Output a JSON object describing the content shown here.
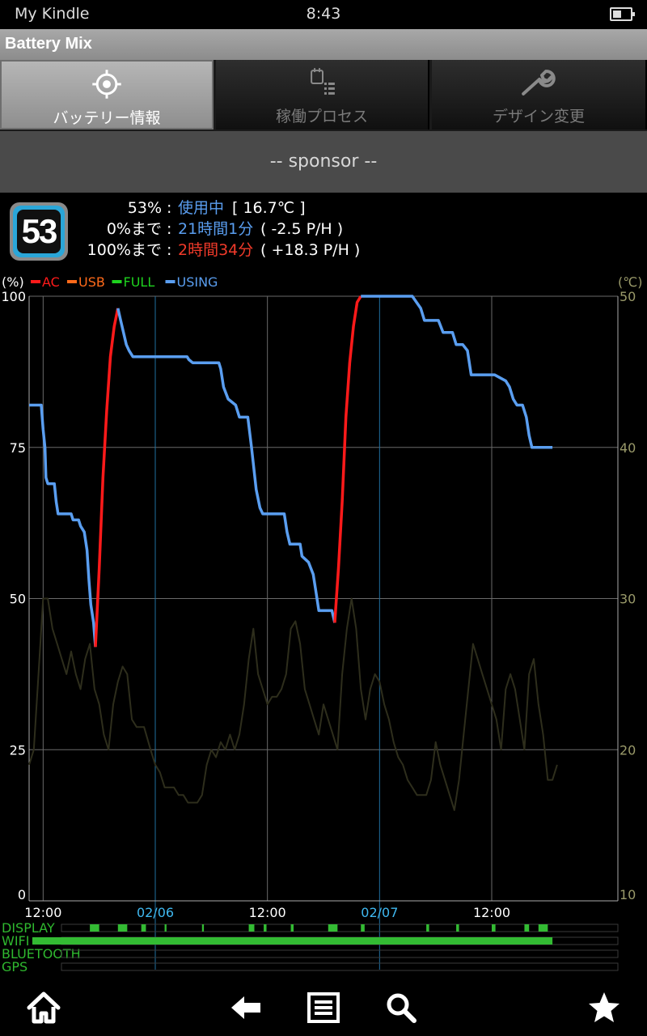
{
  "status_bar": {
    "carrier": "My Kindle",
    "time": "8:43"
  },
  "app_title": "Battery Mix",
  "tabs": [
    {
      "label": "バッテリー情報",
      "icon": "crosshair-icon",
      "active": true
    },
    {
      "label": "稼働プロセス",
      "icon": "process-list-icon",
      "active": false
    },
    {
      "label": "デザイン変更",
      "icon": "wrench-icon",
      "active": false
    }
  ],
  "sponsor_text": "-- sponsor --",
  "battery": {
    "level": "53",
    "level_label": "53%",
    "status_value": "使用中",
    "temperature": "[ 16.7℃ ]",
    "to_empty_label": "0%まで",
    "to_empty_time": "21時間1分",
    "to_empty_rate": "( -2.5 P/H )",
    "to_full_label": "100%まで",
    "to_full_time": "2時間34分",
    "to_full_rate": "( +18.3 P/H )",
    "separator": ":"
  },
  "colors": {
    "ac": "#ff1a1a",
    "usb": "#ff6a1a",
    "full": "#1ed21e",
    "using": "#5a9ef0",
    "temperature_line": "#2e2e1c",
    "date_grid": "#1f6fa0",
    "grid": "#6a6a6a",
    "state_bar": "#33bb33"
  },
  "chart_data": {
    "type": "line",
    "y_left_label": "(%)",
    "y_right_label": "(℃)",
    "ylim": [
      0,
      100
    ],
    "y2lim": [
      10,
      50
    ],
    "y_ticks": [
      0,
      25,
      50,
      75,
      100
    ],
    "y2_ticks": [
      10,
      20,
      30,
      40,
      50
    ],
    "x_tick_labels": [
      {
        "label": "12:00",
        "x": 12,
        "kind": "time"
      },
      {
        "label": "02/06",
        "x": 24,
        "kind": "date"
      },
      {
        "label": "12:00",
        "x": 36,
        "kind": "time"
      },
      {
        "label": "02/07",
        "x": 48,
        "kind": "date"
      },
      {
        "label": "12:00",
        "x": 60,
        "kind": "time"
      }
    ],
    "xlim": [
      10.5,
      73.5
    ],
    "legend": [
      {
        "name": "AC",
        "color": "#ff1a1a"
      },
      {
        "name": "USB",
        "color": "#ff6a1a"
      },
      {
        "name": "FULL",
        "color": "#1ed21e"
      },
      {
        "name": "USING",
        "color": "#5a9ef0"
      }
    ],
    "series": [
      {
        "name": "USING",
        "color": "#5a9ef0",
        "points": [
          [
            10.5,
            82
          ],
          [
            11.8,
            82
          ],
          [
            12.0,
            78
          ],
          [
            12.2,
            75
          ],
          [
            12.3,
            70
          ],
          [
            12.5,
            69
          ],
          [
            13.2,
            69
          ],
          [
            13.4,
            66
          ],
          [
            13.6,
            64
          ],
          [
            15.0,
            64
          ],
          [
            15.2,
            63
          ],
          [
            15.8,
            63
          ],
          [
            16.0,
            62
          ],
          [
            16.4,
            61
          ],
          [
            16.7,
            58
          ],
          [
            16.9,
            53
          ],
          [
            17.1,
            49
          ],
          [
            17.4,
            46
          ],
          [
            17.6,
            42
          ]
        ]
      },
      {
        "name": "AC",
        "color": "#ff1a1a",
        "points": [
          [
            17.6,
            42
          ],
          [
            18.0,
            55
          ],
          [
            18.4,
            70
          ],
          [
            18.8,
            81
          ],
          [
            19.2,
            90
          ],
          [
            19.6,
            95
          ],
          [
            20.0,
            98
          ]
        ]
      },
      {
        "name": "USING",
        "color": "#5a9ef0",
        "points": [
          [
            20.0,
            98
          ],
          [
            20.3,
            96
          ],
          [
            20.6,
            94
          ],
          [
            20.9,
            92
          ],
          [
            21.2,
            91
          ],
          [
            21.6,
            90
          ],
          [
            25.0,
            90
          ],
          [
            27.4,
            90
          ],
          [
            27.6,
            89.5
          ],
          [
            28.0,
            89
          ],
          [
            30.8,
            89
          ],
          [
            31.0,
            88
          ],
          [
            31.3,
            85
          ],
          [
            31.8,
            83
          ],
          [
            32.6,
            82
          ],
          [
            33.0,
            80
          ],
          [
            33.9,
            80
          ],
          [
            34.3,
            75
          ],
          [
            34.8,
            68
          ],
          [
            35.2,
            65
          ],
          [
            35.5,
            64
          ],
          [
            37.8,
            64
          ],
          [
            38.1,
            61
          ],
          [
            38.4,
            59
          ],
          [
            39.5,
            59
          ],
          [
            39.7,
            57
          ],
          [
            40.4,
            56
          ],
          [
            40.9,
            54
          ],
          [
            41.2,
            51
          ],
          [
            41.5,
            48
          ],
          [
            42.9,
            48
          ],
          [
            43.2,
            46
          ]
        ]
      },
      {
        "name": "AC",
        "color": "#ff1a1a",
        "points": [
          [
            43.2,
            46
          ],
          [
            43.6,
            55
          ],
          [
            44.0,
            66
          ],
          [
            44.4,
            80
          ],
          [
            44.8,
            89
          ],
          [
            45.2,
            95
          ],
          [
            45.6,
            99
          ],
          [
            46.0,
            100
          ]
        ]
      },
      {
        "name": "USING",
        "color": "#5a9ef0",
        "points": [
          [
            46.0,
            100
          ],
          [
            51.5,
            100
          ],
          [
            52.4,
            98
          ],
          [
            52.8,
            96
          ],
          [
            54.3,
            96
          ],
          [
            54.8,
            94
          ],
          [
            55.8,
            94
          ],
          [
            56.2,
            92
          ],
          [
            56.9,
            92
          ],
          [
            57.4,
            91
          ],
          [
            57.8,
            87
          ],
          [
            60.3,
            87
          ],
          [
            61.5,
            86
          ],
          [
            61.9,
            85
          ],
          [
            62.3,
            83
          ],
          [
            62.7,
            82
          ],
          [
            63.3,
            82
          ],
          [
            63.7,
            80
          ],
          [
            64.0,
            77
          ],
          [
            64.3,
            75
          ],
          [
            66.5,
            75
          ]
        ]
      },
      {
        "name": "Temperature",
        "axis": "right",
        "color": "#2e2e1c",
        "points": [
          [
            10.5,
            19
          ],
          [
            11.0,
            20
          ],
          [
            11.5,
            25
          ],
          [
            12.0,
            30
          ],
          [
            12.5,
            30
          ],
          [
            13.0,
            28
          ],
          [
            13.5,
            27
          ],
          [
            14.0,
            26
          ],
          [
            14.5,
            25
          ],
          [
            15.0,
            26.5
          ],
          [
            15.5,
            25
          ],
          [
            16.0,
            24
          ],
          [
            16.5,
            26
          ],
          [
            17.0,
            27
          ],
          [
            17.5,
            24
          ],
          [
            18.0,
            23
          ],
          [
            18.5,
            21
          ],
          [
            19.0,
            20
          ],
          [
            19.5,
            23
          ],
          [
            20.0,
            24.5
          ],
          [
            20.5,
            25.5
          ],
          [
            21.0,
            25
          ],
          [
            21.5,
            22
          ],
          [
            22.0,
            21.5
          ],
          [
            22.8,
            21.5
          ],
          [
            23.5,
            20
          ],
          [
            24.0,
            19
          ],
          [
            24.5,
            18.5
          ],
          [
            25.0,
            17.5
          ],
          [
            26.0,
            17.5
          ],
          [
            26.5,
            17
          ],
          [
            27.0,
            17
          ],
          [
            27.5,
            16.5
          ],
          [
            28.5,
            16.5
          ],
          [
            29.0,
            17
          ],
          [
            29.5,
            19
          ],
          [
            30.0,
            20
          ],
          [
            30.5,
            19.5
          ],
          [
            31.0,
            20.5
          ],
          [
            31.5,
            20
          ],
          [
            32.0,
            21
          ],
          [
            32.5,
            20
          ],
          [
            33.0,
            21
          ],
          [
            33.5,
            23
          ],
          [
            34.0,
            26
          ],
          [
            34.5,
            28
          ],
          [
            35.0,
            25
          ],
          [
            35.5,
            24
          ],
          [
            36.0,
            23
          ],
          [
            36.5,
            23.5
          ],
          [
            37.0,
            23.5
          ],
          [
            37.5,
            24
          ],
          [
            38.0,
            25
          ],
          [
            38.5,
            28
          ],
          [
            39.0,
            28.5
          ],
          [
            39.5,
            27
          ],
          [
            40.0,
            24
          ],
          [
            40.5,
            23
          ],
          [
            41.0,
            22
          ],
          [
            41.5,
            21
          ],
          [
            42.0,
            23
          ],
          [
            42.5,
            22
          ],
          [
            43.0,
            21
          ],
          [
            43.5,
            20
          ],
          [
            44.0,
            25
          ],
          [
            44.5,
            28
          ],
          [
            45.0,
            30
          ],
          [
            45.5,
            28
          ],
          [
            46.0,
            24
          ],
          [
            46.5,
            22
          ],
          [
            47.0,
            24
          ],
          [
            47.5,
            25
          ],
          [
            48.0,
            24.5
          ],
          [
            48.5,
            23
          ],
          [
            49.0,
            22
          ],
          [
            49.5,
            20.5
          ],
          [
            50.0,
            19.5
          ],
          [
            50.5,
            19
          ],
          [
            51.0,
            18
          ],
          [
            51.5,
            17.5
          ],
          [
            52.0,
            17
          ],
          [
            53.0,
            17
          ],
          [
            53.5,
            18
          ],
          [
            54.0,
            20.5
          ],
          [
            54.5,
            19
          ],
          [
            55.0,
            18
          ],
          [
            55.5,
            17
          ],
          [
            56.0,
            16
          ],
          [
            56.5,
            18
          ],
          [
            57.0,
            21
          ],
          [
            57.5,
            24
          ],
          [
            58.0,
            27
          ],
          [
            58.5,
            26
          ],
          [
            59.0,
            25
          ],
          [
            59.5,
            24
          ],
          [
            60.0,
            23
          ],
          [
            60.5,
            22
          ],
          [
            61.0,
            20
          ],
          [
            61.5,
            24
          ],
          [
            62.0,
            25
          ],
          [
            62.5,
            24
          ],
          [
            63.0,
            22
          ],
          [
            63.5,
            20
          ],
          [
            64.0,
            25
          ],
          [
            64.5,
            26
          ],
          [
            65.0,
            23
          ],
          [
            65.5,
            21
          ],
          [
            66.0,
            18
          ],
          [
            66.5,
            18
          ],
          [
            67.0,
            19
          ]
        ]
      }
    ],
    "state_rows": [
      {
        "name": "DISPLAY",
        "segments": [
          [
            17.0,
            18.0
          ],
          [
            20.0,
            21.0
          ],
          [
            22.5,
            23.0
          ],
          [
            25.0,
            25.2
          ],
          [
            29.0,
            29.2
          ],
          [
            34.0,
            34.6
          ],
          [
            35.6,
            35.9
          ],
          [
            38.5,
            38.8
          ],
          [
            42.5,
            43.5
          ],
          [
            46.0,
            46.4
          ],
          [
            53.0,
            53.3
          ],
          [
            56.2,
            56.5
          ],
          [
            60.0,
            60.4
          ],
          [
            63.5,
            64.0
          ],
          [
            65.0,
            66.0
          ]
        ]
      },
      {
        "name": "WIFI",
        "segments": [
          [
            10.5,
            66.5
          ]
        ]
      },
      {
        "name": "BLUETOOTH",
        "segments": []
      },
      {
        "name": "GPS",
        "segments": []
      }
    ]
  },
  "nav": [
    {
      "name": "home",
      "icon": "home-icon"
    },
    {
      "name": "back",
      "icon": "back-arrow-icon"
    },
    {
      "name": "menu",
      "icon": "menu-icon"
    },
    {
      "name": "search",
      "icon": "search-icon"
    },
    {
      "name": "favorite",
      "icon": "star-icon"
    }
  ]
}
